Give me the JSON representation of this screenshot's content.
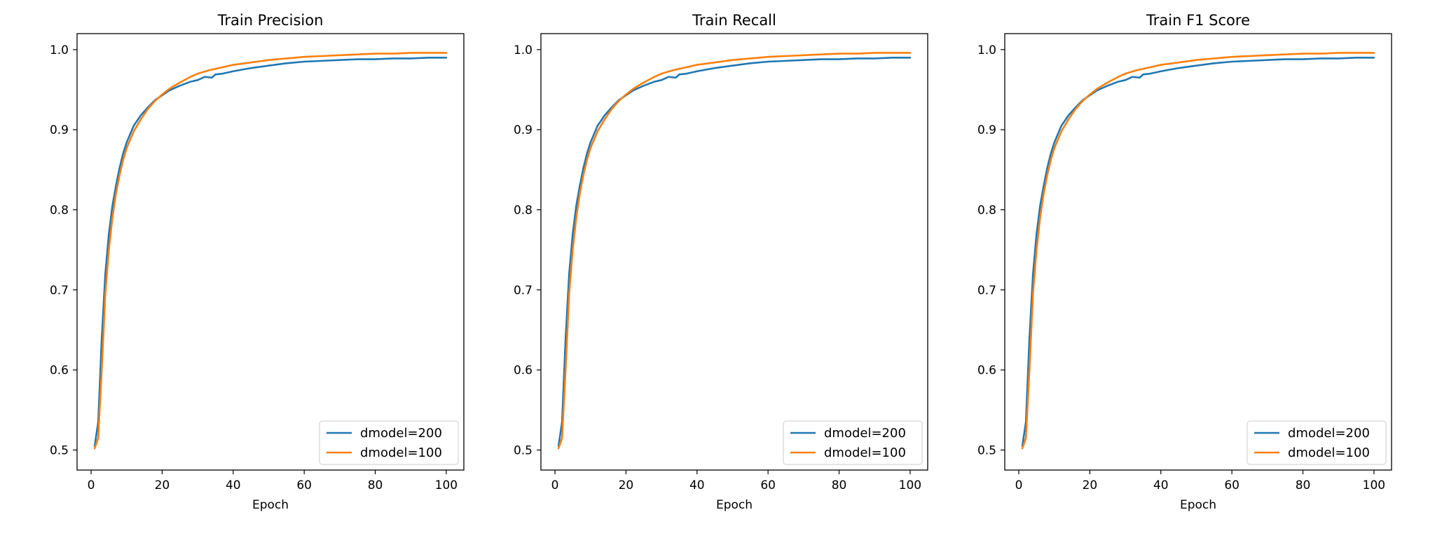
{
  "chart_data": [
    {
      "type": "line",
      "title": "Train Precision",
      "xlabel": "Epoch",
      "ylabel": "",
      "xlim": [
        -3.95,
        104.95
      ],
      "ylim": [
        0.475,
        1.02
      ],
      "xticks": [
        "0",
        "20",
        "40",
        "60",
        "80",
        "100"
      ],
      "yticks": [
        "0.5",
        "0.6",
        "0.7",
        "0.8",
        "0.9",
        "1.0"
      ],
      "legend_position": "lower-right",
      "grid": false,
      "series": [
        {
          "name": "dmodel=200",
          "color": "#1f77b4",
          "points": [
            [
              1,
              0.505
            ],
            [
              2,
              0.535
            ],
            [
              3,
              0.64
            ],
            [
              4,
              0.72
            ],
            [
              5,
              0.77
            ],
            [
              6,
              0.805
            ],
            [
              7,
              0.83
            ],
            [
              8,
              0.852
            ],
            [
              9,
              0.87
            ],
            [
              10,
              0.884
            ],
            [
              12,
              0.905
            ],
            [
              14,
              0.918
            ],
            [
              16,
              0.928
            ],
            [
              18,
              0.937
            ],
            [
              20,
              0.943
            ],
            [
              22,
              0.949
            ],
            [
              25,
              0.955
            ],
            [
              28,
              0.96
            ],
            [
              30,
              0.962
            ],
            [
              32,
              0.966
            ],
            [
              34,
              0.965
            ],
            [
              35,
              0.969
            ],
            [
              37,
              0.97
            ],
            [
              40,
              0.973
            ],
            [
              45,
              0.977
            ],
            [
              50,
              0.98
            ],
            [
              55,
              0.983
            ],
            [
              60,
              0.985
            ],
            [
              65,
              0.986
            ],
            [
              70,
              0.987
            ],
            [
              75,
              0.988
            ],
            [
              80,
              0.988
            ],
            [
              85,
              0.989
            ],
            [
              90,
              0.989
            ],
            [
              95,
              0.99
            ],
            [
              100,
              0.99
            ]
          ]
        },
        {
          "name": "dmodel=100",
          "color": "#ff7f0e",
          "points": [
            [
              1,
              0.502
            ],
            [
              2,
              0.515
            ],
            [
              3,
              0.6
            ],
            [
              4,
              0.695
            ],
            [
              5,
              0.75
            ],
            [
              6,
              0.79
            ],
            [
              7,
              0.82
            ],
            [
              8,
              0.843
            ],
            [
              9,
              0.862
            ],
            [
              10,
              0.877
            ],
            [
              12,
              0.898
            ],
            [
              14,
              0.913
            ],
            [
              16,
              0.926
            ],
            [
              18,
              0.936
            ],
            [
              20,
              0.944
            ],
            [
              22,
              0.951
            ],
            [
              25,
              0.959
            ],
            [
              28,
              0.966
            ],
            [
              30,
              0.97
            ],
            [
              33,
              0.974
            ],
            [
              36,
              0.977
            ],
            [
              40,
              0.981
            ],
            [
              45,
              0.984
            ],
            [
              50,
              0.987
            ],
            [
              55,
              0.989
            ],
            [
              60,
              0.991
            ],
            [
              65,
              0.992
            ],
            [
              70,
              0.993
            ],
            [
              75,
              0.994
            ],
            [
              80,
              0.995
            ],
            [
              85,
              0.995
            ],
            [
              90,
              0.996
            ],
            [
              95,
              0.996
            ],
            [
              100,
              0.996
            ]
          ]
        }
      ]
    },
    {
      "type": "line",
      "title": "Train Recall",
      "xlabel": "Epoch",
      "ylabel": "",
      "xlim": [
        -3.95,
        104.95
      ],
      "ylim": [
        0.475,
        1.02
      ],
      "xticks": [
        "0",
        "20",
        "40",
        "60",
        "80",
        "100"
      ],
      "yticks": [
        "0.5",
        "0.6",
        "0.7",
        "0.8",
        "0.9",
        "1.0"
      ],
      "legend_position": "lower-right",
      "grid": false,
      "series": [
        {
          "name": "dmodel=200",
          "color": "#1f77b4",
          "points": [
            [
              1,
              0.505
            ],
            [
              2,
              0.535
            ],
            [
              3,
              0.64
            ],
            [
              4,
              0.72
            ],
            [
              5,
              0.77
            ],
            [
              6,
              0.805
            ],
            [
              7,
              0.83
            ],
            [
              8,
              0.852
            ],
            [
              9,
              0.87
            ],
            [
              10,
              0.884
            ],
            [
              12,
              0.905
            ],
            [
              14,
              0.918
            ],
            [
              16,
              0.928
            ],
            [
              18,
              0.937
            ],
            [
              20,
              0.943
            ],
            [
              22,
              0.949
            ],
            [
              25,
              0.955
            ],
            [
              28,
              0.96
            ],
            [
              30,
              0.962
            ],
            [
              32,
              0.966
            ],
            [
              34,
              0.965
            ],
            [
              35,
              0.969
            ],
            [
              37,
              0.97
            ],
            [
              40,
              0.973
            ],
            [
              45,
              0.977
            ],
            [
              50,
              0.98
            ],
            [
              55,
              0.983
            ],
            [
              60,
              0.985
            ],
            [
              65,
              0.986
            ],
            [
              70,
              0.987
            ],
            [
              75,
              0.988
            ],
            [
              80,
              0.988
            ],
            [
              85,
              0.989
            ],
            [
              90,
              0.989
            ],
            [
              95,
              0.99
            ],
            [
              100,
              0.99
            ]
          ]
        },
        {
          "name": "dmodel=100",
          "color": "#ff7f0e",
          "points": [
            [
              1,
              0.502
            ],
            [
              2,
              0.515
            ],
            [
              3,
              0.6
            ],
            [
              4,
              0.695
            ],
            [
              5,
              0.75
            ],
            [
              6,
              0.79
            ],
            [
              7,
              0.82
            ],
            [
              8,
              0.843
            ],
            [
              9,
              0.862
            ],
            [
              10,
              0.877
            ],
            [
              12,
              0.898
            ],
            [
              14,
              0.913
            ],
            [
              16,
              0.926
            ],
            [
              18,
              0.936
            ],
            [
              20,
              0.944
            ],
            [
              22,
              0.951
            ],
            [
              25,
              0.959
            ],
            [
              28,
              0.966
            ],
            [
              30,
              0.97
            ],
            [
              33,
              0.974
            ],
            [
              36,
              0.977
            ],
            [
              40,
              0.981
            ],
            [
              45,
              0.984
            ],
            [
              50,
              0.987
            ],
            [
              55,
              0.989
            ],
            [
              60,
              0.991
            ],
            [
              65,
              0.992
            ],
            [
              70,
              0.993
            ],
            [
              75,
              0.994
            ],
            [
              80,
              0.995
            ],
            [
              85,
              0.995
            ],
            [
              90,
              0.996
            ],
            [
              95,
              0.996
            ],
            [
              100,
              0.996
            ]
          ]
        }
      ]
    },
    {
      "type": "line",
      "title": "Train F1 Score",
      "xlabel": "Epoch",
      "ylabel": "",
      "xlim": [
        -3.95,
        104.95
      ],
      "ylim": [
        0.475,
        1.02
      ],
      "xticks": [
        "0",
        "20",
        "40",
        "60",
        "80",
        "100"
      ],
      "yticks": [
        "0.5",
        "0.6",
        "0.7",
        "0.8",
        "0.9",
        "1.0"
      ],
      "legend_position": "lower-right",
      "grid": false,
      "series": [
        {
          "name": "dmodel=200",
          "color": "#1f77b4",
          "points": [
            [
              1,
              0.505
            ],
            [
              2,
              0.535
            ],
            [
              3,
              0.64
            ],
            [
              4,
              0.72
            ],
            [
              5,
              0.77
            ],
            [
              6,
              0.805
            ],
            [
              7,
              0.83
            ],
            [
              8,
              0.852
            ],
            [
              9,
              0.87
            ],
            [
              10,
              0.884
            ],
            [
              12,
              0.905
            ],
            [
              14,
              0.918
            ],
            [
              16,
              0.928
            ],
            [
              18,
              0.937
            ],
            [
              20,
              0.943
            ],
            [
              22,
              0.949
            ],
            [
              25,
              0.955
            ],
            [
              28,
              0.96
            ],
            [
              30,
              0.962
            ],
            [
              32,
              0.966
            ],
            [
              34,
              0.965
            ],
            [
              35,
              0.969
            ],
            [
              37,
              0.97
            ],
            [
              40,
              0.973
            ],
            [
              45,
              0.977
            ],
            [
              50,
              0.98
            ],
            [
              55,
              0.983
            ],
            [
              60,
              0.985
            ],
            [
              65,
              0.986
            ],
            [
              70,
              0.987
            ],
            [
              75,
              0.988
            ],
            [
              80,
              0.988
            ],
            [
              85,
              0.989
            ],
            [
              90,
              0.989
            ],
            [
              95,
              0.99
            ],
            [
              100,
              0.99
            ]
          ]
        },
        {
          "name": "dmodel=100",
          "color": "#ff7f0e",
          "points": [
            [
              1,
              0.502
            ],
            [
              2,
              0.515
            ],
            [
              3,
              0.6
            ],
            [
              4,
              0.695
            ],
            [
              5,
              0.75
            ],
            [
              6,
              0.79
            ],
            [
              7,
              0.82
            ],
            [
              8,
              0.843
            ],
            [
              9,
              0.862
            ],
            [
              10,
              0.877
            ],
            [
              12,
              0.898
            ],
            [
              14,
              0.913
            ],
            [
              16,
              0.926
            ],
            [
              18,
              0.936
            ],
            [
              20,
              0.944
            ],
            [
              22,
              0.951
            ],
            [
              25,
              0.959
            ],
            [
              28,
              0.966
            ],
            [
              30,
              0.97
            ],
            [
              33,
              0.974
            ],
            [
              36,
              0.977
            ],
            [
              40,
              0.981
            ],
            [
              45,
              0.984
            ],
            [
              50,
              0.987
            ],
            [
              55,
              0.989
            ],
            [
              60,
              0.991
            ],
            [
              65,
              0.992
            ],
            [
              70,
              0.993
            ],
            [
              75,
              0.994
            ],
            [
              80,
              0.995
            ],
            [
              85,
              0.995
            ],
            [
              90,
              0.996
            ],
            [
              95,
              0.996
            ],
            [
              100,
              0.996
            ]
          ]
        }
      ]
    }
  ]
}
